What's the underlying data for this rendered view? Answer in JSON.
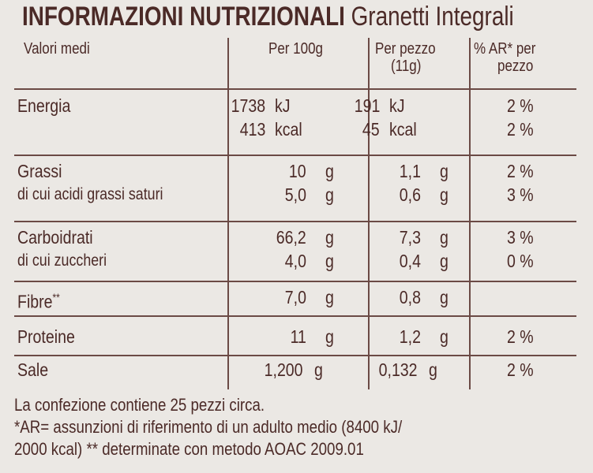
{
  "header": {
    "title_bold": "INFORMAZIONI NUTRIZIONALI",
    "title_normal": "Granetti Integrali"
  },
  "table": {
    "columns": [
      [
        "Valori medi"
      ],
      [
        "Per 100g"
      ],
      [
        "Per pezzo",
        "(11g)"
      ],
      [
        "% AR* per",
        "pezzo"
      ]
    ],
    "rows": [
      {
        "label": [
          "Energia"
        ],
        "per100": [
          {
            "v": "1738",
            "u": "kJ"
          },
          {
            "v": "413",
            "u": "kcal"
          }
        ],
        "perPezzo": [
          {
            "v": "191",
            "u": "kJ"
          },
          {
            "v": "45",
            "u": "kcal"
          }
        ],
        "ar": [
          "2 %",
          "2 %"
        ]
      },
      {
        "label": [
          "Grassi",
          "di cui acidi grassi saturi"
        ],
        "per100": [
          {
            "v": "10",
            "u": "g"
          },
          {
            "v": "5,0",
            "u": "g"
          }
        ],
        "perPezzo": [
          {
            "v": "1,1",
            "u": "g"
          },
          {
            "v": "0,6",
            "u": "g"
          }
        ],
        "ar": [
          "2 %",
          "3 %"
        ]
      },
      {
        "label": [
          "Carboidrati",
          "di cui zuccheri"
        ],
        "per100": [
          {
            "v": "66,2",
            "u": "g"
          },
          {
            "v": "4,0",
            "u": "g"
          }
        ],
        "perPezzo": [
          {
            "v": "7,3",
            "u": "g"
          },
          {
            "v": "0,4",
            "u": "g"
          }
        ],
        "ar": [
          "3 %",
          "0 %"
        ]
      },
      {
        "label": [
          "Fibre"
        ],
        "note": "**",
        "per100": [
          {
            "v": "7,0",
            "u": "g"
          }
        ],
        "perPezzo": [
          {
            "v": "0,8",
            "u": "g"
          }
        ],
        "ar": []
      },
      {
        "label": [
          "Proteine"
        ],
        "per100": [
          {
            "v": "11",
            "u": "g"
          }
        ],
        "perPezzo": [
          {
            "v": "1,2",
            "u": "g"
          }
        ],
        "ar": [
          "2 %"
        ]
      },
      {
        "label": [
          "Sale"
        ],
        "per100": [
          {
            "v": "1,200",
            "u": "g"
          }
        ],
        "perPezzo": [
          {
            "v": "0,132",
            "u": "g"
          }
        ],
        "ar": [
          "2 %"
        ]
      }
    ]
  },
  "footer": {
    "lines": [
      "La confezione contiene 25 pezzi circa.",
      "*AR= assunzioni di riferimento di un adulto medio (8400 kJ/",
      "2000 kcal) ** determinate con metodo AOAC 2009.01"
    ]
  }
}
